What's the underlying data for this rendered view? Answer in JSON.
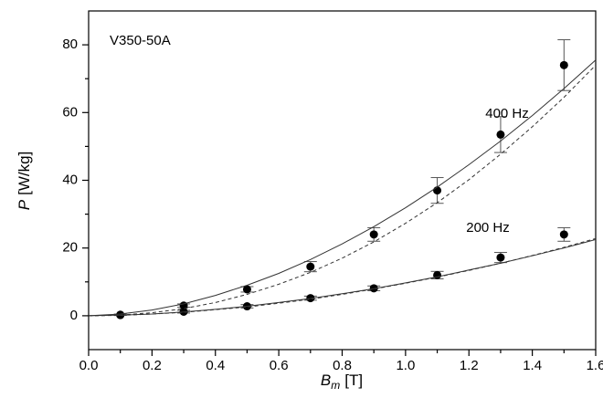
{
  "chart_data": {
    "type": "scatter",
    "annotations": [
      "V350-50A",
      "400 Hz",
      "200 Hz"
    ],
    "xlabel": {
      "symbol": "B",
      "subscript": "m",
      "unit": "[T]"
    },
    "ylabel": {
      "symbol": "P",
      "unit": "[W/kg]"
    },
    "xlim": [
      0,
      1.6
    ],
    "ylim": [
      -10,
      90
    ],
    "xticks": [
      {
        "value": 0,
        "label": "0.0"
      },
      0.2,
      0.4,
      0.6,
      0.8,
      {
        "value": 1,
        "label": "1.0"
      },
      1.2,
      1.4,
      1.6
    ],
    "yticks": [
      0,
      20,
      40,
      60,
      80
    ],
    "xminor": [
      0.1,
      0.3,
      0.5,
      0.7,
      0.9,
      1.1,
      1.3,
      1.5
    ],
    "yminor": [
      10,
      30,
      50,
      70
    ],
    "series": [
      {
        "kind": "points",
        "color": "#000000",
        "x": [
          0.1,
          0.3,
          0.5,
          0.7,
          0.9,
          1.1,
          1.3,
          1.5
        ],
        "values": [
          0.3,
          3,
          7.8,
          14.5,
          24,
          37,
          53.5,
          74
        ],
        "errors": [
          0.2,
          0.5,
          0.8,
          1.5,
          2,
          3.8,
          5.3,
          7.5
        ]
      },
      {
        "kind": "points",
        "color": "#000000",
        "x": [
          0.1,
          0.3,
          0.5,
          0.7,
          0.9,
          1.1,
          1.3,
          1.5
        ],
        "values": [
          0.2,
          1.2,
          2.8,
          5.2,
          8.1,
          12,
          17.2,
          24
        ],
        "errors": [
          0.1,
          0.4,
          0.5,
          0.6,
          0.7,
          1.1,
          1.5,
          2
        ]
      },
      {
        "kind": "line",
        "style": "solid",
        "color": "#333333",
        "x": [
          0,
          0.1,
          0.2,
          0.3,
          0.4,
          0.5,
          0.6,
          0.7,
          0.8,
          0.9,
          1.0,
          1.1,
          1.2,
          1.3,
          1.4,
          1.5,
          1.6
        ],
        "values": [
          0,
          0.5,
          1.7,
          3.5,
          6.0,
          9.0,
          12.5,
          16.6,
          21.2,
          26.3,
          31.9,
          38.0,
          44.6,
          51.6,
          59.1,
          67.1,
          75.5
        ]
      },
      {
        "kind": "line",
        "style": "dashed",
        "color": "#333333",
        "x": [
          0,
          0.1,
          0.2,
          0.3,
          0.4,
          0.5,
          0.6,
          0.7,
          0.8,
          0.9,
          1.0,
          1.1,
          1.2,
          1.3,
          1.4,
          1.5,
          1.6
        ],
        "values": [
          0,
          0.2,
          0.9,
          2.1,
          3.9,
          6.3,
          9.3,
          12.8,
          17.0,
          21.8,
          27.3,
          33.4,
          40.2,
          47.7,
          55.8,
          64.5,
          74.0
        ]
      },
      {
        "kind": "line",
        "style": "solid",
        "color": "#333333",
        "x": [
          0,
          0.1,
          0.2,
          0.3,
          0.4,
          0.5,
          0.6,
          0.7,
          0.8,
          0.9,
          1.0,
          1.1,
          1.2,
          1.3,
          1.4,
          1.5,
          1.6
        ],
        "values": [
          0,
          0.2,
          0.5,
          1.1,
          1.9,
          2.8,
          3.9,
          5.1,
          6.5,
          8.0,
          9.7,
          11.5,
          13.5,
          15.5,
          17.7,
          20.0,
          22.5
        ]
      },
      {
        "kind": "line",
        "style": "dashed",
        "color": "#333333",
        "x": [
          0,
          0.1,
          0.2,
          0.3,
          0.4,
          0.5,
          0.6,
          0.7,
          0.8,
          0.9,
          1.0,
          1.1,
          1.2,
          1.3,
          1.4,
          1.5,
          1.6
        ],
        "values": [
          0,
          0.1,
          0.5,
          1.0,
          1.8,
          2.6,
          3.7,
          4.9,
          6.3,
          7.9,
          9.6,
          11.4,
          13.4,
          15.5,
          17.8,
          20.2,
          22.8
        ]
      }
    ]
  }
}
